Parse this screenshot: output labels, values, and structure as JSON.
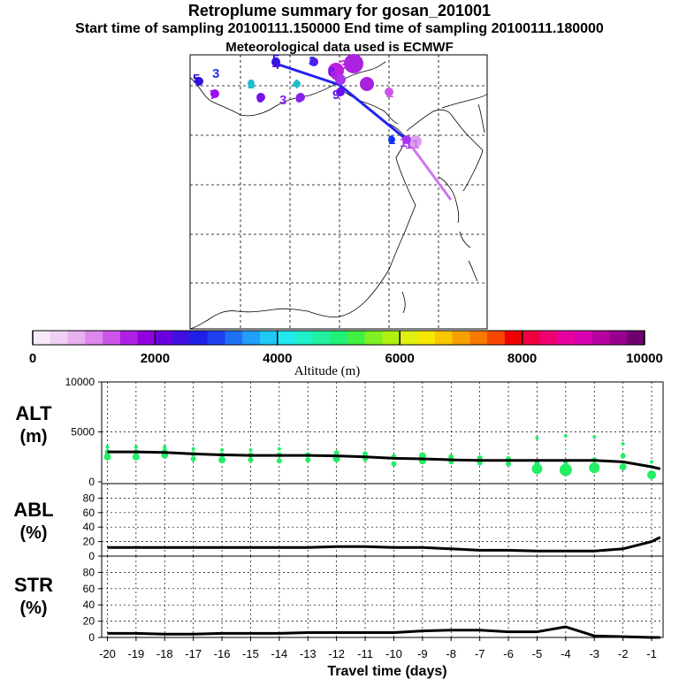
{
  "header": {
    "title": "Retroplume summary for gosan_201001",
    "sampling_line": "Start time of sampling 20100111.150000     End time of sampling 20100111.180000",
    "met_line": "Meteorological data used is ECMWF"
  },
  "colors": {
    "track_blue": "#2222ee",
    "track_purple": "#aa33ee",
    "track_light": "#cc77ee",
    "alt_points": "#22ee66",
    "line": "#000000"
  },
  "colorbar": {
    "label": "Altitude (m)",
    "tick_labels": [
      "0",
      "2000",
      "4000",
      "6000",
      "8000",
      "10000"
    ],
    "ticks": [
      0,
      2000,
      4000,
      6000,
      8000,
      10000
    ],
    "range": [
      0,
      10000
    ],
    "colors": [
      "#f8e8f8",
      "#f0d0f4",
      "#e8b0f0",
      "#dc88ec",
      "#cc55e8",
      "#b020e4",
      "#9000e0",
      "#6a00e0",
      "#4010e0",
      "#2020e8",
      "#2040f0",
      "#2070f4",
      "#20a0f8",
      "#20c8f8",
      "#20e8f0",
      "#20f0c8",
      "#20f0a0",
      "#20f078",
      "#40f040",
      "#80f020",
      "#b0f010",
      "#e0f010",
      "#f8e800",
      "#f8c800",
      "#f8a000",
      "#f87800",
      "#f84800",
      "#f00000",
      "#f00040",
      "#f00070",
      "#e800a0",
      "#d800b0",
      "#b800a0",
      "#980090",
      "#700070"
    ]
  },
  "map": {
    "labels": [
      {
        "text": "5",
        "color": "#3311dd"
      },
      {
        "text": "3",
        "color": "#2233ee"
      },
      {
        "text": "4",
        "color": "#5511ee"
      },
      {
        "text": "5",
        "color": "#3311dd"
      },
      {
        "text": "7",
        "color": "#9911ee"
      },
      {
        "text": "2",
        "color": "#22bbcc"
      },
      {
        "text": "6",
        "color": "#7711ee"
      },
      {
        "text": "3",
        "color": "#8822ee"
      },
      {
        "text": "6",
        "color": "#8822ee"
      },
      {
        "text": "4",
        "color": "#22bbcc"
      },
      {
        "text": "3",
        "color": "#2233ee"
      },
      {
        "text": "9",
        "color": "#6611ee"
      },
      {
        "text": "8",
        "color": "#6611ee"
      },
      {
        "text": "9",
        "color": "#bb22dd"
      },
      {
        "text": "3",
        "color": "#bb22dd"
      },
      {
        "text": "5",
        "color": "#aa22dd"
      },
      {
        "text": "9",
        "color": "#aa22dd"
      },
      {
        "text": "8",
        "color": "#aa22dd"
      },
      {
        "text": "2",
        "color": "#cc55e8"
      },
      {
        "text": "1",
        "color": "#1133ee"
      },
      {
        "text": "1",
        "color": "#aa33ee"
      },
      {
        "text": "1",
        "color": "#aa33ee"
      },
      {
        "text": "1",
        "color": "#cc77ee"
      }
    ]
  },
  "panels": {
    "alt": {
      "label_top": "ALT",
      "label_bottom": "(m)",
      "ticks": [
        "0",
        "5000",
        "10000"
      ]
    },
    "abl": {
      "label_top": "ABL",
      "label_bottom": "(%)",
      "ticks": [
        "0",
        "20",
        "40",
        "60",
        "80"
      ]
    },
    "str": {
      "label_top": "STR",
      "label_bottom": "(%)",
      "ticks": [
        "0",
        "20",
        "40",
        "60",
        "80"
      ]
    }
  },
  "chart_data": [
    {
      "type": "line",
      "title": "ALT",
      "ylabel": "ALT (m)",
      "ylim": [
        0,
        10000
      ],
      "xlim": [
        -20.2,
        -0.6
      ],
      "x": [
        -20,
        -19,
        -18,
        -17,
        -16,
        -15,
        -14,
        -13,
        -12,
        -11,
        -10,
        -9,
        -8,
        -7,
        -6,
        -5,
        -4,
        -3,
        -2,
        -1,
        -0.7
      ],
      "series": [
        {
          "name": "mean altitude",
          "values": [
            3000,
            3000,
            2950,
            2800,
            2700,
            2650,
            2650,
            2650,
            2600,
            2500,
            2350,
            2300,
            2200,
            2150,
            2150,
            2150,
            2150,
            2150,
            2000,
            1500,
            1300
          ]
        }
      ],
      "scatter_points": [
        {
          "x": -20,
          "y": 2500,
          "r": 4
        },
        {
          "x": -20,
          "y": 3000,
          "r": 3
        },
        {
          "x": -20,
          "y": 3500,
          "r": 2
        },
        {
          "x": -19,
          "y": 2500,
          "r": 4
        },
        {
          "x": -19,
          "y": 3000,
          "r": 3
        },
        {
          "x": -19,
          "y": 3500,
          "r": 2
        },
        {
          "x": -18,
          "y": 2700,
          "r": 4
        },
        {
          "x": -18,
          "y": 3100,
          "r": 3
        },
        {
          "x": -18,
          "y": 3500,
          "r": 2
        },
        {
          "x": -17,
          "y": 2300,
          "r": 3
        },
        {
          "x": -17,
          "y": 2800,
          "r": 3
        },
        {
          "x": -17,
          "y": 3300,
          "r": 2
        },
        {
          "x": -16,
          "y": 2200,
          "r": 4
        },
        {
          "x": -16,
          "y": 2700,
          "r": 3
        },
        {
          "x": -16,
          "y": 3200,
          "r": 2
        },
        {
          "x": -15,
          "y": 2200,
          "r": 3
        },
        {
          "x": -15,
          "y": 2700,
          "r": 3
        },
        {
          "x": -15,
          "y": 3200,
          "r": 2
        },
        {
          "x": -14,
          "y": 2100,
          "r": 3
        },
        {
          "x": -14,
          "y": 2700,
          "r": 3
        },
        {
          "x": -14,
          "y": 3300,
          "r": 2
        },
        {
          "x": -13,
          "y": 2200,
          "r": 3
        },
        {
          "x": -13,
          "y": 2700,
          "r": 3
        },
        {
          "x": -12,
          "y": 2300,
          "r": 4
        },
        {
          "x": -12,
          "y": 2900,
          "r": 3
        },
        {
          "x": -11,
          "y": 2300,
          "r": 3
        },
        {
          "x": -11,
          "y": 2800,
          "r": 3
        },
        {
          "x": -10,
          "y": 1800,
          "r": 3
        },
        {
          "x": -10,
          "y": 2500,
          "r": 3
        },
        {
          "x": -9,
          "y": 2100,
          "r": 4
        },
        {
          "x": -9,
          "y": 2600,
          "r": 4
        },
        {
          "x": -8,
          "y": 2000,
          "r": 3
        },
        {
          "x": -8,
          "y": 2500,
          "r": 3
        },
        {
          "x": -7,
          "y": 1900,
          "r": 3
        },
        {
          "x": -7,
          "y": 2400,
          "r": 3
        },
        {
          "x": -6,
          "y": 1800,
          "r": 3
        },
        {
          "x": -6,
          "y": 2300,
          "r": 3
        },
        {
          "x": -5,
          "y": 1300,
          "r": 6
        },
        {
          "x": -5,
          "y": 1900,
          "r": 3
        },
        {
          "x": -5,
          "y": 4400,
          "r": 2
        },
        {
          "x": -4,
          "y": 1200,
          "r": 7
        },
        {
          "x": -4,
          "y": 2000,
          "r": 3
        },
        {
          "x": -4,
          "y": 3300,
          "r": 1
        },
        {
          "x": -4,
          "y": 4600,
          "r": 2
        },
        {
          "x": -3,
          "y": 1400,
          "r": 6
        },
        {
          "x": -3,
          "y": 2200,
          "r": 3
        },
        {
          "x": -3,
          "y": 4500,
          "r": 2
        },
        {
          "x": -2,
          "y": 1500,
          "r": 4
        },
        {
          "x": -2,
          "y": 2600,
          "r": 3
        },
        {
          "x": -2,
          "y": 3800,
          "r": 2
        },
        {
          "x": -1,
          "y": 700,
          "r": 5
        },
        {
          "x": -1,
          "y": 1500,
          "r": 2
        },
        {
          "x": -1,
          "y": 2000,
          "r": 2
        }
      ]
    },
    {
      "type": "line",
      "title": "ABL",
      "ylabel": "ABL (%)",
      "ylim": [
        0,
        100
      ],
      "xlim": [
        -20.2,
        -0.6
      ],
      "x": [
        -20,
        -19,
        -18,
        -17,
        -16,
        -15,
        -14,
        -13,
        -12,
        -11,
        -10,
        -9,
        -8,
        -7,
        -6,
        -5,
        -4,
        -3,
        -2,
        -1,
        -0.7
      ],
      "series": [
        {
          "name": "ABL fraction",
          "values": [
            12,
            12,
            12,
            12,
            12,
            12,
            12,
            12,
            13,
            13,
            12,
            12,
            10,
            8,
            8,
            7,
            7,
            7,
            10,
            20,
            26
          ]
        }
      ]
    },
    {
      "type": "line",
      "title": "STR",
      "ylabel": "STR (%)",
      "ylim": [
        0,
        100
      ],
      "xlim": [
        -20.2,
        -0.6
      ],
      "xlabel": "Travel time (days)",
      "x": [
        -20,
        -19,
        -18,
        -17,
        -16,
        -15,
        -14,
        -13,
        -12,
        -11,
        -10,
        -9,
        -8,
        -7,
        -6,
        -5,
        -4,
        -3,
        -2,
        -1,
        -0.7
      ],
      "series": [
        {
          "name": "stratospheric fraction",
          "values": [
            5,
            5,
            4,
            4,
            5,
            5,
            5,
            6,
            6,
            6,
            6,
            8,
            9,
            9,
            7,
            7,
            13,
            2,
            1,
            0,
            0
          ]
        }
      ],
      "xtick_labels": [
        "-20",
        "-19",
        "-18",
        "-17",
        "-16",
        "-15",
        "-14",
        "-13",
        "-12",
        "-11",
        "-10",
        "-9",
        "-8",
        "-7",
        "-6",
        "-5",
        "-4",
        "-3",
        "-2",
        "-1"
      ]
    }
  ]
}
